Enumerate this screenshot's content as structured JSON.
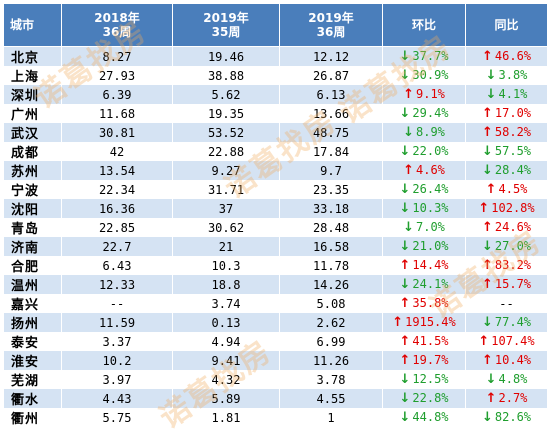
{
  "header": {
    "city": "城市",
    "col1": [
      "2018年",
      "36周"
    ],
    "col2": [
      "2019年",
      "35周"
    ],
    "col3": [
      "2019年",
      "36周"
    ],
    "hb": "环比",
    "tb": "同比"
  },
  "colors": {
    "header_bg": "#4a7ebb",
    "row_alt": "#d5e3f3",
    "up": "#e00000",
    "down": "#1f9e2e"
  },
  "watermark": "诺葛找房",
  "rows": [
    {
      "city": "北京",
      "v1": "8.27",
      "v2": "19.46",
      "v3": "12.12",
      "hb": {
        "dir": "down",
        "text": "37.7%"
      },
      "tb": {
        "dir": "up",
        "text": "46.6%"
      }
    },
    {
      "city": "上海",
      "v1": "27.93",
      "v2": "38.88",
      "v3": "26.87",
      "hb": {
        "dir": "down",
        "text": "30.9%"
      },
      "tb": {
        "dir": "down",
        "text": "3.8%"
      }
    },
    {
      "city": "深圳",
      "v1": "6.39",
      "v2": "5.62",
      "v3": "6.13",
      "hb": {
        "dir": "up",
        "text": "9.1%"
      },
      "tb": {
        "dir": "down",
        "text": "4.1%"
      }
    },
    {
      "city": "广州",
      "v1": "11.68",
      "v2": "19.35",
      "v3": "13.66",
      "hb": {
        "dir": "down",
        "text": "29.4%"
      },
      "tb": {
        "dir": "up",
        "text": "17.0%"
      }
    },
    {
      "city": "武汉",
      "v1": "30.81",
      "v2": "53.52",
      "v3": "48.75",
      "hb": {
        "dir": "down",
        "text": "8.9%"
      },
      "tb": {
        "dir": "up",
        "text": "58.2%"
      }
    },
    {
      "city": "成都",
      "v1": "42",
      "v2": "22.88",
      "v3": "17.84",
      "hb": {
        "dir": "down",
        "text": "22.0%"
      },
      "tb": {
        "dir": "down",
        "text": "57.5%"
      }
    },
    {
      "city": "苏州",
      "v1": "13.54",
      "v2": "9.27",
      "v3": "9.7",
      "hb": {
        "dir": "up",
        "text": "4.6%"
      },
      "tb": {
        "dir": "down",
        "text": "28.4%"
      }
    },
    {
      "city": "宁波",
      "v1": "22.34",
      "v2": "31.71",
      "v3": "23.35",
      "hb": {
        "dir": "down",
        "text": "26.4%"
      },
      "tb": {
        "dir": "up",
        "text": "4.5%"
      }
    },
    {
      "city": "沈阳",
      "v1": "16.36",
      "v2": "37",
      "v3": "33.18",
      "hb": {
        "dir": "down",
        "text": "10.3%"
      },
      "tb": {
        "dir": "up",
        "text": "102.8%"
      }
    },
    {
      "city": "青岛",
      "v1": "22.85",
      "v2": "30.62",
      "v3": "28.48",
      "hb": {
        "dir": "down",
        "text": "7.0%"
      },
      "tb": {
        "dir": "up",
        "text": "24.6%"
      }
    },
    {
      "city": "济南",
      "v1": "22.7",
      "v2": "21",
      "v3": "16.58",
      "hb": {
        "dir": "down",
        "text": "21.0%"
      },
      "tb": {
        "dir": "down",
        "text": "27.0%"
      }
    },
    {
      "city": "合肥",
      "v1": "6.43",
      "v2": "10.3",
      "v3": "11.78",
      "hb": {
        "dir": "up",
        "text": "14.4%"
      },
      "tb": {
        "dir": "up",
        "text": "83.2%"
      }
    },
    {
      "city": "温州",
      "v1": "12.33",
      "v2": "18.8",
      "v3": "14.26",
      "hb": {
        "dir": "down",
        "text": "24.1%"
      },
      "tb": {
        "dir": "up",
        "text": "15.7%"
      }
    },
    {
      "city": "嘉兴",
      "v1": "--",
      "v2": "3.74",
      "v3": "5.08",
      "hb": {
        "dir": "up",
        "text": "35.8%"
      },
      "tb": {
        "dir": "none",
        "text": "--"
      }
    },
    {
      "city": "扬州",
      "v1": "11.59",
      "v2": "0.13",
      "v3": "2.62",
      "hb": {
        "dir": "up",
        "text": "1915.4%"
      },
      "tb": {
        "dir": "down",
        "text": "77.4%"
      }
    },
    {
      "city": "泰安",
      "v1": "3.37",
      "v2": "4.94",
      "v3": "6.99",
      "hb": {
        "dir": "up",
        "text": "41.5%"
      },
      "tb": {
        "dir": "up",
        "text": "107.4%"
      }
    },
    {
      "city": "淮安",
      "v1": "10.2",
      "v2": "9.41",
      "v3": "11.26",
      "hb": {
        "dir": "up",
        "text": "19.7%"
      },
      "tb": {
        "dir": "up",
        "text": "10.4%"
      }
    },
    {
      "city": "芜湖",
      "v1": "3.97",
      "v2": "4.32",
      "v3": "3.78",
      "hb": {
        "dir": "down",
        "text": "12.5%"
      },
      "tb": {
        "dir": "down",
        "text": "4.8%"
      }
    },
    {
      "city": "衢水",
      "v1": "4.43",
      "v2": "5.89",
      "v3": "4.55",
      "hb": {
        "dir": "down",
        "text": "22.8%"
      },
      "tb": {
        "dir": "up",
        "text": "2.7%"
      }
    },
    {
      "city": "衢州",
      "v1": "5.75",
      "v2": "1.81",
      "v3": "1",
      "hb": {
        "dir": "down",
        "text": "44.8%"
      },
      "tb": {
        "dir": "down",
        "text": "82.6%"
      }
    }
  ]
}
